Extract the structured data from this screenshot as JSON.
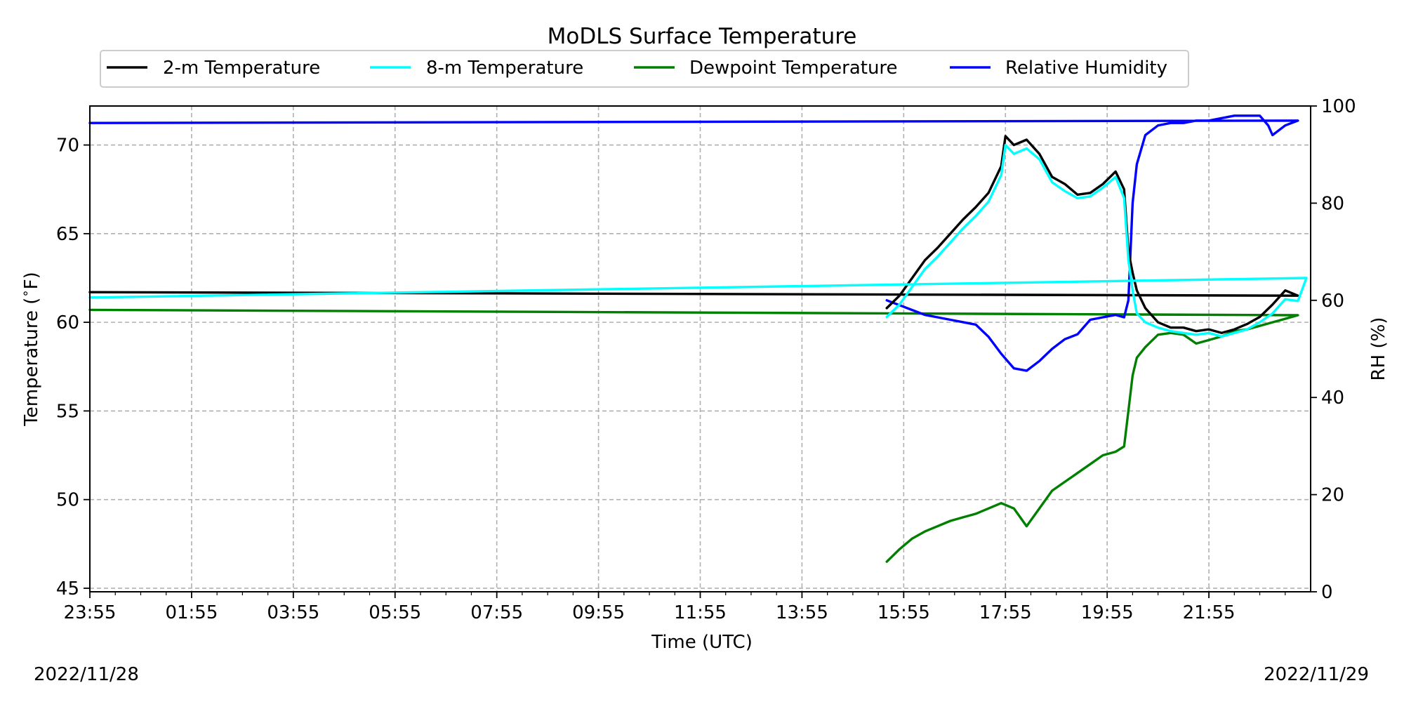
{
  "chart_data": {
    "type": "line",
    "title": "MoDLS Surface Temperature",
    "xlabel": "Time (UTC)",
    "ylabel_left": "Temperature ($^\\circ$F)",
    "ylabel_left_main": "Temperature (",
    "ylabel_left_unit": "F)",
    "ylabel_right": "RH (%)",
    "date_left": "2022/11/28",
    "date_right": "2022/11/29",
    "x_ticks": [
      "23:55",
      "01:55",
      "03:55",
      "05:55",
      "07:55",
      "09:55",
      "11:55",
      "13:55",
      "15:55",
      "17:55",
      "19:55",
      "21:55"
    ],
    "xlim": [
      "2022-11-28 23:55",
      "2022-11-29 23:55"
    ],
    "ylim_left": [
      44.8,
      72.2
    ],
    "ylim_right": [
      0,
      100
    ],
    "yticks_left": [
      45,
      50,
      55,
      60,
      65,
      70
    ],
    "yticks_right": [
      0,
      20,
      40,
      60,
      80,
      100
    ],
    "grid": true,
    "legend_position": "top, above plot",
    "series": [
      {
        "name": "2-m Temperature",
        "axis": "left",
        "color": "#000000",
        "x": [
          "15:35",
          "15:50",
          "16:05",
          "16:20",
          "16:35",
          "16:50",
          "17:05",
          "17:20",
          "17:35",
          "17:50",
          "17:55",
          "18:05",
          "18:20",
          "18:35",
          "18:50",
          "19:05",
          "19:20",
          "19:35",
          "19:50",
          "20:05",
          "20:15",
          "20:20",
          "20:25",
          "20:30",
          "20:40",
          "20:55",
          "21:10",
          "21:25",
          "21:40",
          "21:55",
          "22:10",
          "22:25",
          "22:40",
          "22:55",
          "23:10",
          "23:25",
          "23:40",
          "23:55"
        ],
        "y": [
          60.8,
          61.5,
          62.5,
          63.5,
          64.2,
          65.0,
          65.8,
          66.5,
          67.3,
          68.8,
          70.5,
          70.0,
          70.3,
          69.5,
          68.2,
          67.8,
          67.2,
          67.3,
          67.8,
          68.5,
          67.5,
          64.0,
          62.8,
          61.8,
          60.8,
          60.0,
          59.7,
          59.7,
          59.5,
          59.6,
          59.4,
          59.6,
          59.9,
          60.3,
          61.0,
          61.8,
          61.5,
          61.7
        ]
      },
      {
        "name": "8-m Temperature",
        "axis": "left",
        "color": "#00ffff",
        "x": [
          "15:35",
          "15:50",
          "16:05",
          "16:20",
          "16:35",
          "16:50",
          "17:05",
          "17:20",
          "17:35",
          "17:50",
          "17:55",
          "18:05",
          "18:20",
          "18:35",
          "18:50",
          "19:05",
          "19:20",
          "19:35",
          "19:50",
          "20:05",
          "20:15",
          "20:20",
          "20:25",
          "20:30",
          "20:40",
          "20:55",
          "21:10",
          "21:25",
          "21:40",
          "21:55",
          "22:10",
          "22:25",
          "22:40",
          "22:55",
          "23:10",
          "23:25",
          "23:40",
          "23:50",
          "23:55"
        ],
        "y": [
          60.3,
          61.0,
          62.0,
          63.0,
          63.7,
          64.5,
          65.3,
          66.0,
          66.8,
          68.3,
          70.0,
          69.5,
          69.8,
          69.2,
          67.9,
          67.4,
          67.0,
          67.1,
          67.6,
          68.2,
          67.0,
          63.5,
          61.8,
          60.5,
          60.0,
          59.7,
          59.5,
          59.4,
          59.3,
          59.4,
          59.2,
          59.4,
          59.6,
          60.0,
          60.5,
          61.3,
          61.2,
          62.5,
          61.4
        ]
      },
      {
        "name": "Dewpoint Temperature",
        "axis": "left",
        "color": "#008000",
        "x": [
          "15:35",
          "15:50",
          "16:05",
          "16:20",
          "16:35",
          "16:50",
          "17:05",
          "17:20",
          "17:35",
          "17:50",
          "18:05",
          "18:20",
          "18:35",
          "18:50",
          "19:05",
          "19:20",
          "19:35",
          "19:50",
          "20:05",
          "20:15",
          "20:20",
          "20:25",
          "20:30",
          "20:40",
          "20:55",
          "21:10",
          "21:25",
          "21:40",
          "21:55",
          "22:10",
          "22:25",
          "22:40",
          "22:55",
          "23:10",
          "23:25",
          "23:40",
          "23:55"
        ],
        "y": [
          46.5,
          47.2,
          47.8,
          48.2,
          48.5,
          48.8,
          49.0,
          49.2,
          49.5,
          49.8,
          49.5,
          48.5,
          49.5,
          50.5,
          51.0,
          51.5,
          52.0,
          52.5,
          52.7,
          53.0,
          55.0,
          57.0,
          58.0,
          58.6,
          59.3,
          59.4,
          59.3,
          58.8,
          59.0,
          59.2,
          59.5,
          59.6,
          59.8,
          60.0,
          60.2,
          60.4,
          60.7
        ]
      },
      {
        "name": "Relative Humidity",
        "axis": "right",
        "color": "#0000ff",
        "x": [
          "15:35",
          "15:50",
          "16:05",
          "16:20",
          "16:35",
          "16:50",
          "17:05",
          "17:20",
          "17:35",
          "17:50",
          "18:05",
          "18:20",
          "18:35",
          "18:50",
          "19:05",
          "19:20",
          "19:35",
          "19:50",
          "20:05",
          "20:15",
          "20:20",
          "20:25",
          "20:30",
          "20:40",
          "20:55",
          "21:10",
          "21:25",
          "21:40",
          "21:55",
          "22:10",
          "22:25",
          "22:40",
          "22:55",
          "23:05",
          "23:10",
          "23:25",
          "23:40",
          "23:55"
        ],
        "y": [
          60.0,
          59.0,
          58.0,
          57.0,
          56.5,
          56.0,
          55.5,
          55.0,
          52.5,
          49.0,
          46.0,
          45.5,
          47.5,
          50.0,
          52.0,
          53.0,
          56.0,
          56.5,
          57.0,
          56.5,
          60.0,
          80.0,
          88.0,
          94.0,
          96.0,
          96.5,
          96.5,
          97.0,
          97.0,
          97.5,
          98.0,
          98.0,
          98.0,
          96.0,
          94.0,
          96.0,
          97.0,
          96.5
        ]
      }
    ]
  }
}
